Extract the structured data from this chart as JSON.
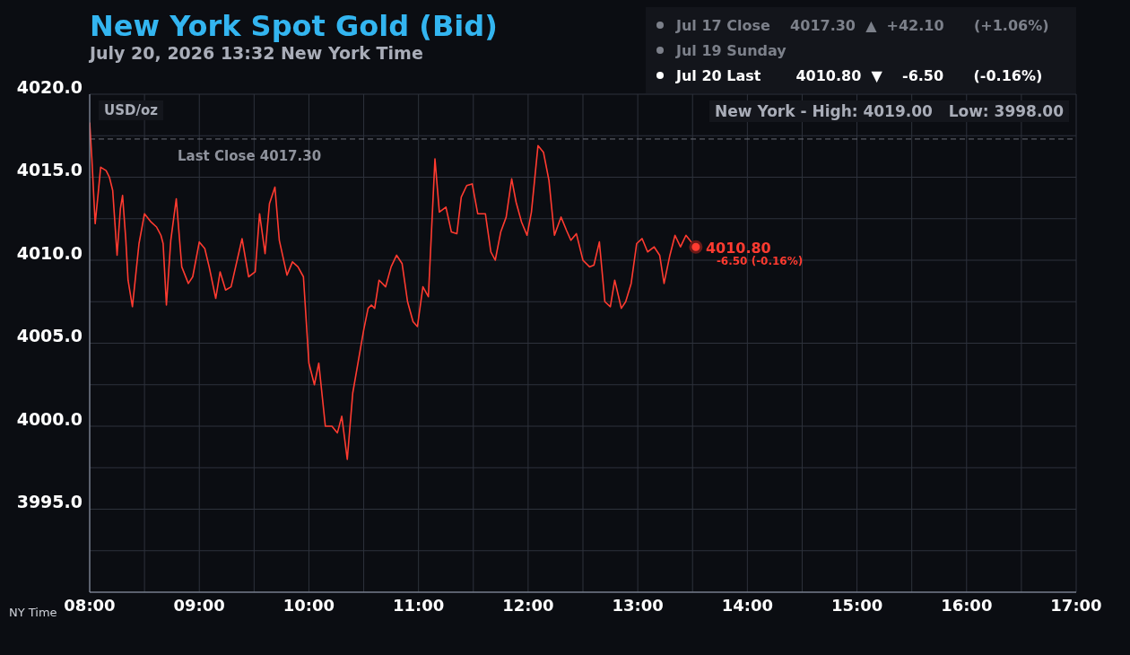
{
  "chart_data": {
    "type": "line",
    "title": "New York Spot Gold (Bid)",
    "subtitle": "July 20, 2026 13:32 New York Time",
    "xlabel": "NY Time",
    "ylabel": "USD/oz",
    "annotations": [
      "Jul 17 Close    4017.30  ▲  +42.10      (+1.06%)",
      "Jul 19 Sunday",
      "Jul 20 Last       4010.80  ▼    -6.50      (-0.16%)",
      "New York - High: 4019.00   Low: 3998.00",
      {
        "text": "4010.80",
        "x": 13.53,
        "y": 4010.8
      },
      {
        "text": "-6.50 (-0.16%)",
        "x": 13.53,
        "y": 4010.8
      }
    ],
    "ref_lines": [
      {
        "axis": "y",
        "value": 4017.3,
        "label": "Last Close 4017.30",
        "color": "#6b6f78",
        "line_style": "dashed"
      }
    ],
    "x": [
      8.0,
      8.02,
      8.05,
      8.08,
      8.1,
      8.15,
      8.18,
      8.21,
      8.25,
      8.28,
      8.3,
      8.33,
      8.35,
      8.39,
      8.42,
      8.45,
      8.5,
      8.56,
      8.61,
      8.65,
      8.67,
      8.7,
      8.74,
      8.79,
      8.84,
      8.9,
      8.94,
      9.0,
      9.05,
      9.09,
      9.15,
      9.19,
      9.24,
      9.29,
      9.39,
      9.45,
      9.51,
      9.55,
      9.6,
      9.64,
      9.69,
      9.73,
      9.8,
      9.85,
      9.9,
      9.95,
      10.0,
      10.05,
      10.09,
      10.15,
      10.21,
      10.26,
      10.3,
      10.35,
      10.4,
      10.45,
      10.5,
      10.54,
      10.57,
      10.6,
      10.64,
      10.7,
      10.75,
      10.8,
      10.85,
      10.9,
      10.95,
      10.99,
      11.04,
      11.09,
      11.15,
      11.19,
      11.25,
      11.3,
      11.35,
      11.39,
      11.44,
      11.49,
      11.54,
      11.61,
      11.66,
      11.7,
      11.75,
      11.8,
      11.85,
      11.89,
      11.94,
      11.99,
      12.03,
      12.09,
      12.14,
      12.19,
      12.24,
      12.3,
      12.35,
      12.39,
      12.44,
      12.5,
      12.56,
      12.6,
      12.65,
      12.7,
      12.75,
      12.79,
      12.85,
      12.89,
      12.94,
      12.99,
      13.04,
      13.09,
      13.15,
      13.2,
      13.24,
      13.29,
      13.34,
      13.39,
      13.44,
      13.5,
      13.53
    ],
    "series": [
      {
        "color": "#ff3b30",
        "values": [
          4018.3,
          4016.1,
          4012.2,
          4014.2,
          4015.6,
          4015.4,
          4015.0,
          4014.2,
          4010.3,
          4013.1,
          4013.9,
          4011.2,
          4008.8,
          4007.2,
          4009.1,
          4011.0,
          4012.8,
          4012.3,
          4012.0,
          4011.5,
          4011.0,
          4007.3,
          4011.2,
          4013.7,
          4009.6,
          4008.6,
          4009.0,
          4011.1,
          4010.7,
          4009.6,
          4007.7,
          4009.3,
          4008.2,
          4008.4,
          4011.3,
          4009.0,
          4009.3,
          4012.8,
          4010.4,
          4013.4,
          4014.4,
          4011.2,
          4009.1,
          4009.9,
          4009.6,
          4009.0,
          4003.8,
          4002.5,
          4003.8,
          4000.0,
          4000.0,
          3999.6,
          4000.6,
          3998.0,
          4002.0,
          4003.9,
          4005.8,
          4007.1,
          4007.3,
          4007.1,
          4008.8,
          4008.4,
          4009.6,
          4010.3,
          4009.8,
          4007.5,
          4006.3,
          4006.0,
          4008.4,
          4007.8,
          4016.1,
          4012.9,
          4013.2,
          4011.7,
          4011.6,
          4013.8,
          4014.5,
          4014.6,
          4012.8,
          4012.8,
          4010.5,
          4010.0,
          4011.7,
          4012.6,
          4014.9,
          4013.5,
          4012.3,
          4011.5,
          4012.9,
          4016.9,
          4016.5,
          4014.8,
          4011.5,
          4012.6,
          4011.8,
          4011.2,
          4011.6,
          4010.0,
          4009.6,
          4009.7,
          4011.1,
          4007.5,
          4007.2,
          4008.8,
          4007.1,
          4007.5,
          4008.6,
          4011.0,
          4011.3,
          4010.5,
          4010.8,
          4010.3,
          4008.6,
          4010.2,
          4011.5,
          4010.8,
          4011.5,
          4011.0,
          4010.8
        ]
      }
    ],
    "xlim": [
      8,
      17
    ],
    "xticks": [
      {
        "value": 8,
        "label": "08:00"
      },
      {
        "value": 8.5,
        "label": null
      },
      {
        "value": 9,
        "label": "09:00"
      },
      {
        "value": 9.5,
        "label": null
      },
      {
        "value": 10,
        "label": "10:00"
      },
      {
        "value": 10.5,
        "label": null
      },
      {
        "value": 11,
        "label": "11:00"
      },
      {
        "value": 11.5,
        "label": null
      },
      {
        "value": 12,
        "label": "12:00"
      },
      {
        "value": 12.5,
        "label": null
      },
      {
        "value": 13,
        "label": "13:00"
      },
      {
        "value": 13.5,
        "label": null
      },
      {
        "value": 14,
        "label": "14:00"
      },
      {
        "value": 14.5,
        "label": null
      },
      {
        "value": 15,
        "label": "15:00"
      },
      {
        "value": 15.5,
        "label": null
      },
      {
        "value": 16,
        "label": "16:00"
      },
      {
        "value": 16.5,
        "label": null
      },
      {
        "value": 17,
        "label": "17:00"
      }
    ],
    "ylim": [
      3990,
      4020
    ],
    "yticks": [
      {
        "value": 3992.5,
        "label": null
      },
      {
        "value": 3995,
        "label": "3995.0"
      },
      {
        "value": 3997.5,
        "label": null
      },
      {
        "value": 4000,
        "label": "4000.0"
      },
      {
        "value": 4002.5,
        "label": null
      },
      {
        "value": 4005,
        "label": "4005.0"
      },
      {
        "value": 4007.5,
        "label": null
      },
      {
        "value": 4010,
        "label": "4010.0"
      },
      {
        "value": 4012.5,
        "label": null
      },
      {
        "value": 4015,
        "label": "4015.0"
      },
      {
        "value": 4017.5,
        "label": null
      },
      {
        "value": 4020,
        "label": "4020.0"
      }
    ],
    "grid": true,
    "marker": "none",
    "line_style": "solid"
  }
}
